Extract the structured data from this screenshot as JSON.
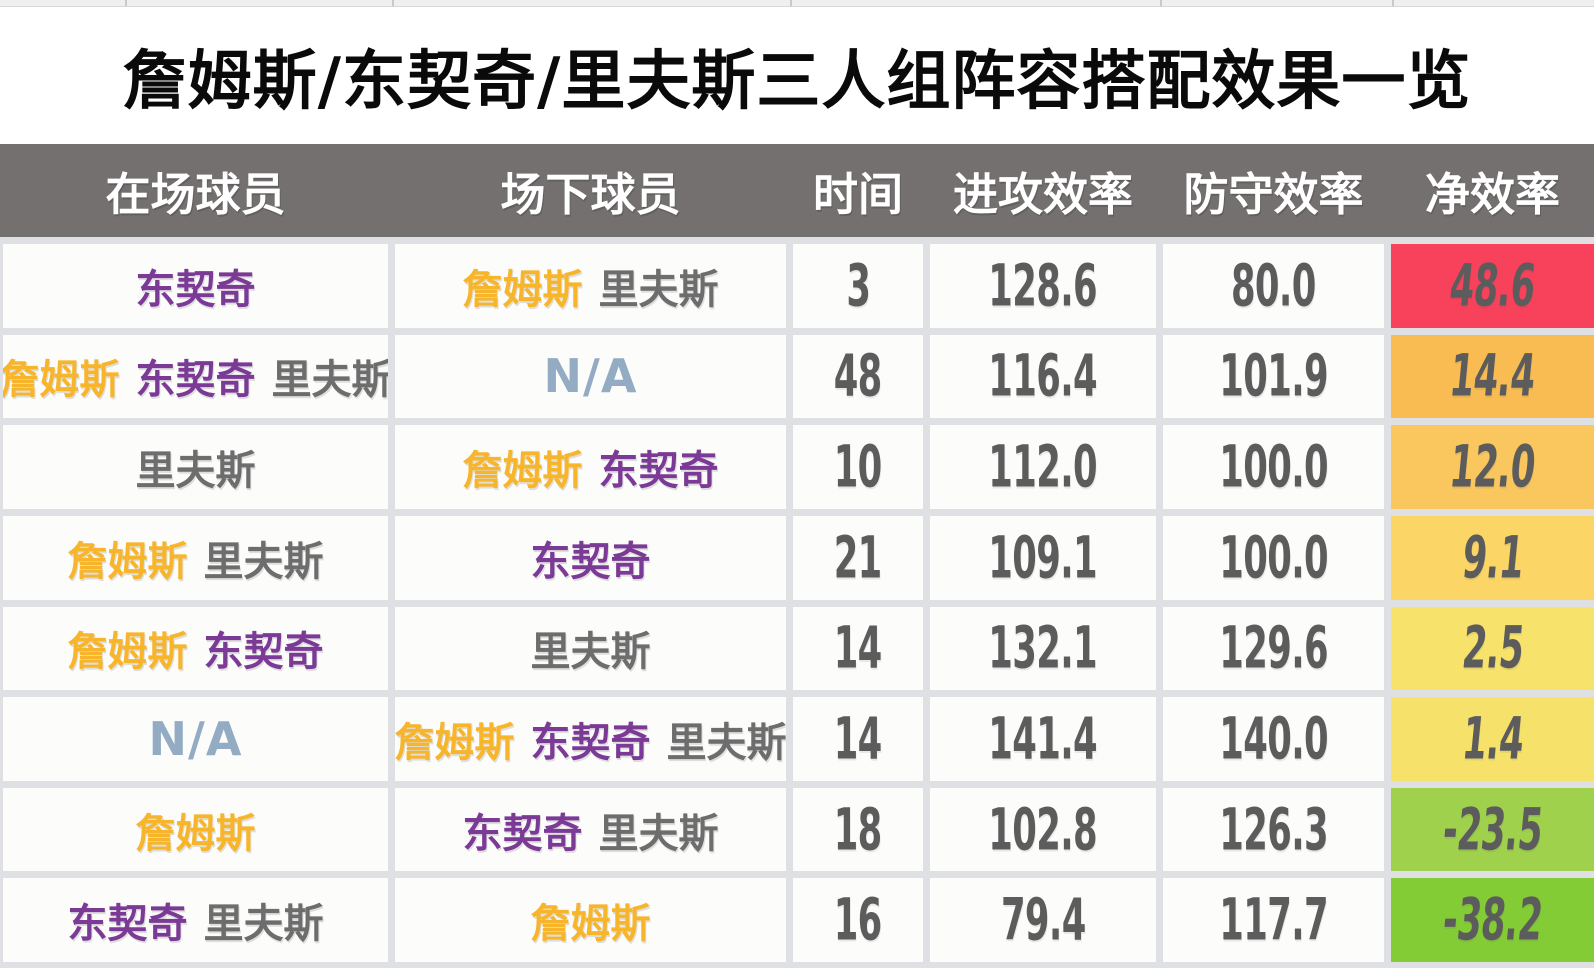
{
  "chart_data": {
    "type": "table",
    "title": "詹姆斯/东契奇/里夫斯三人组阵容搭配效果一览",
    "columns": [
      "在场球员",
      "场下球员",
      "时间",
      "进攻效率",
      "防守效率",
      "净效率"
    ],
    "rows": [
      {
        "on_court": [
          "东契奇"
        ],
        "off_court": [
          "詹姆斯",
          "里夫斯"
        ],
        "time": "3",
        "offensive_rating": "128.6",
        "defensive_rating": "80.0",
        "net_rating": "48.6",
        "net_bg": "#F8415A"
      },
      {
        "on_court": [
          "詹姆斯",
          "东契奇",
          "里夫斯"
        ],
        "off_court": [
          "N/A"
        ],
        "time": "48",
        "offensive_rating": "116.4",
        "defensive_rating": "101.9",
        "net_rating": "14.4",
        "net_bg": "#F8BC52"
      },
      {
        "on_court": [
          "里夫斯"
        ],
        "off_court": [
          "詹姆斯",
          "东契奇"
        ],
        "time": "10",
        "offensive_rating": "112.0",
        "defensive_rating": "100.0",
        "net_rating": "12.0",
        "net_bg": "#F9C75E"
      },
      {
        "on_court": [
          "詹姆斯",
          "里夫斯"
        ],
        "off_court": [
          "东契奇"
        ],
        "time": "21",
        "offensive_rating": "109.1",
        "defensive_rating": "100.0",
        "net_rating": "9.1",
        "net_bg": "#FBD666"
      },
      {
        "on_court": [
          "詹姆斯",
          "东契奇"
        ],
        "off_court": [
          "里夫斯"
        ],
        "time": "14",
        "offensive_rating": "132.1",
        "defensive_rating": "129.6",
        "net_rating": "2.5",
        "net_bg": "#F7E26C"
      },
      {
        "on_court": [
          "N/A"
        ],
        "off_court": [
          "詹姆斯",
          "东契奇",
          "里夫斯"
        ],
        "time": "14",
        "offensive_rating": "141.4",
        "defensive_rating": "140.0",
        "net_rating": "1.4",
        "net_bg": "#F6E26B"
      },
      {
        "on_court": [
          "詹姆斯"
        ],
        "off_court": [
          "东契奇",
          "里夫斯"
        ],
        "time": "18",
        "offensive_rating": "102.8",
        "defensive_rating": "126.3",
        "net_rating": "-23.5",
        "net_bg": "#9FD14C"
      },
      {
        "on_court": [
          "东契奇",
          "里夫斯"
        ],
        "off_court": [
          "詹姆斯"
        ],
        "time": "16",
        "offensive_rating": "79.4",
        "defensive_rating": "117.7",
        "net_rating": "-38.2",
        "net_bg": "#84CC36"
      }
    ]
  },
  "player_colors": {
    "詹姆斯": "#F7B52C",
    "东契奇": "#7C3A97",
    "里夫斯": "#6D6D6D",
    "N/A": "#93ACC3"
  },
  "colors": {
    "page_bg": "#FFFFFF",
    "title_text": "#0A0A0A",
    "header_bg": "#747070",
    "header_text": "#FFFFFF",
    "grid_line": "#DEE0E4",
    "cell_bg": "#FCFCFB",
    "number_text": "#5C5C5C"
  }
}
